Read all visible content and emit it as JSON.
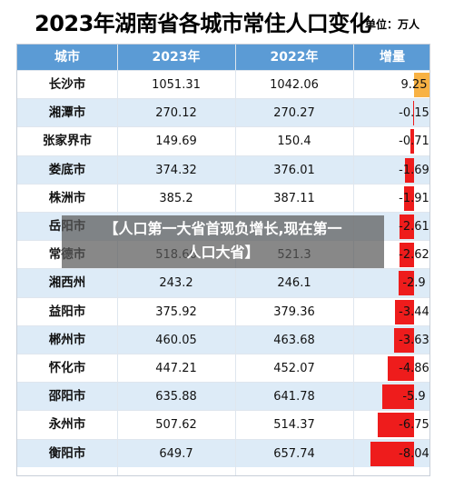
{
  "title": "2023年湖南省各城市常住人口变化",
  "unit": "单位：万人",
  "headers": [
    "城市",
    "2023年",
    "2022年",
    "增量"
  ],
  "rows": [
    {
      "city": "长沙市",
      "y2023": "1051.31",
      "y2022": "1042.06",
      "change": "9.25",
      "value": 9.25
    },
    {
      "city": "湘潭市",
      "y2023": "270.12",
      "y2022": "270.27",
      "change": "-0.15",
      "value": -0.15
    },
    {
      "city": "张家界市",
      "y2023": "149.69",
      "y2022": "150.4",
      "change": "-0.71",
      "value": -0.71
    },
    {
      "city": "娄底市",
      "y2023": "374.32",
      "y2022": "376.01",
      "change": "-1.69",
      "value": -1.69
    },
    {
      "city": "株洲市",
      "y2023": "385.2",
      "y2022": "387.11",
      "change": "-1.91",
      "value": -1.91
    },
    {
      "city": "岳阳市",
      "y2023": "",
      "y2022": "",
      "change": "-2.61",
      "value": -2.61
    },
    {
      "city": "常德市",
      "y2023": "518.66",
      "y2022": "521.3",
      "change": "-2.62",
      "value": -2.62
    },
    {
      "city": "湘西州",
      "y2023": "243.2",
      "y2022": "246.1",
      "change": "-2.9",
      "value": -2.9
    },
    {
      "city": "益阳市",
      "y2023": "375.92",
      "y2022": "379.36",
      "change": "-3.44",
      "value": -3.44
    },
    {
      "city": "郴州市",
      "y2023": "460.05",
      "y2022": "463.68",
      "change": "-3.63",
      "value": -3.63
    },
    {
      "city": "怀化市",
      "y2023": "447.21",
      "y2022": "452.07",
      "change": "-4.86",
      "value": -4.86
    },
    {
      "city": "邵阳市",
      "y2023": "635.88",
      "y2022": "641.78",
      "change": "-5.9",
      "value": -5.9
    },
    {
      "city": "永州市",
      "y2023": "507.62",
      "y2022": "514.37",
      "change": "-6.75",
      "value": -6.75
    },
    {
      "city": "衡阳市",
      "y2023": "649.7",
      "y2022": "657.74",
      "change": "-8.04",
      "value": -8.04
    }
  ],
  "overlay": {
    "line1": "【人口第一大省首现负增长,现在第一",
    "line2": "人口大省】"
  },
  "colors": {
    "header": "#5b9bd5",
    "alt_row": "#ddebf7",
    "positive_bar": "#f8b244",
    "negative_bar": "#ee1c1c"
  }
}
